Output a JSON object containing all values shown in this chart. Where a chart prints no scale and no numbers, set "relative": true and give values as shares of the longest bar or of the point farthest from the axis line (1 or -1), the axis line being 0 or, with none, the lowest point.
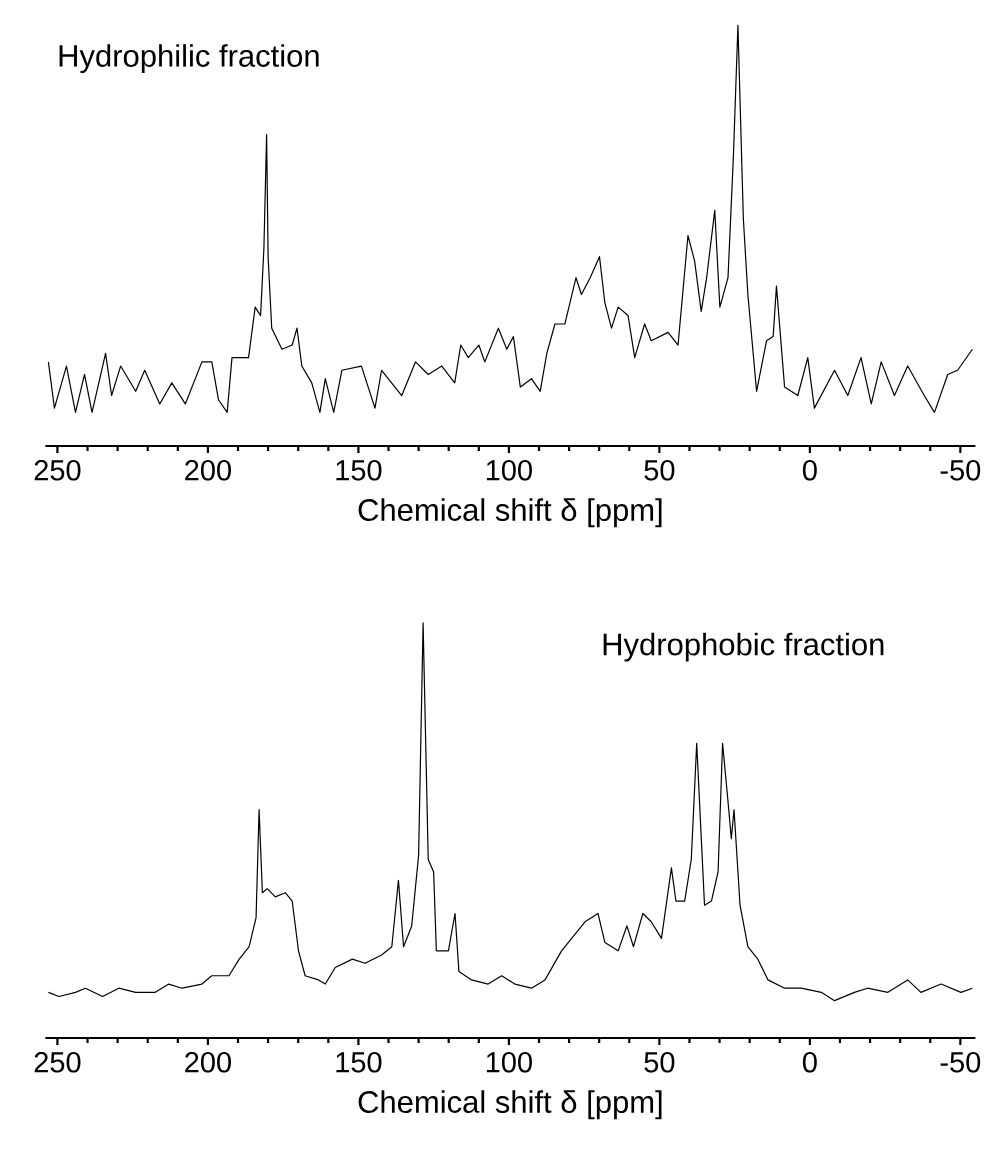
{
  "chart_data": [
    {
      "type": "line",
      "title": "Hydrophilic fraction",
      "xlabel": "Chemical shift δ [ppm]",
      "relative": true,
      "xlim": [
        254,
        -55
      ],
      "xticks": [
        250,
        200,
        150,
        100,
        50,
        0,
        -50
      ],
      "tick_labels": "x",
      "marker": "none",
      "series": [
        {
          "color": "#000000",
          "line_style": "solid",
          "x": [
            253,
            251,
            247,
            244,
            241,
            238.5,
            234,
            232,
            229,
            224,
            221,
            216,
            212,
            207.5,
            202,
            198.7,
            196.5,
            193.6,
            192,
            186.5,
            184.3,
            182.5,
            181.4,
            180.5,
            180,
            178.8,
            175.4,
            172,
            170.4,
            168.8,
            165.5,
            162.8,
            161,
            158.2,
            155.5,
            149,
            144.5,
            142.3,
            135.6,
            131,
            126.8,
            122.3,
            118,
            116,
            113.5,
            110,
            108,
            103.5,
            100.7,
            98.5,
            96.2,
            92.5,
            89.6,
            87.4,
            84.7,
            81.4,
            77.7,
            75.9,
            73,
            69.9,
            68.1,
            65.9,
            63.7,
            60.4,
            58.2,
            54.9,
            52.7,
            47.1,
            43.8,
            40.5,
            38.3,
            36.1,
            34.3,
            31.6,
            29.9,
            27.2,
            25.4,
            23.9,
            22.1,
            20.6,
            17.7,
            14.4,
            12.2,
            11.1,
            8.4,
            4,
            0.7,
            -1.5,
            -8.2,
            -12.6,
            -17,
            -20.4,
            -23.7,
            -28.1,
            -32.5,
            -38,
            -41.4,
            -45.8,
            -49.1,
            -54
          ],
          "values": [
            0.2,
            0.09,
            0.19,
            0.08,
            0.17,
            0.08,
            0.22,
            0.12,
            0.19,
            0.13,
            0.18,
            0.1,
            0.15,
            0.1,
            0.2,
            0.2,
            0.11,
            0.08,
            0.21,
            0.21,
            0.33,
            0.31,
            0.47,
            0.74,
            0.45,
            0.28,
            0.23,
            0.24,
            0.28,
            0.19,
            0.15,
            0.08,
            0.16,
            0.08,
            0.18,
            0.19,
            0.09,
            0.18,
            0.12,
            0.2,
            0.17,
            0.19,
            0.15,
            0.24,
            0.21,
            0.24,
            0.2,
            0.28,
            0.23,
            0.26,
            0.14,
            0.16,
            0.13,
            0.22,
            0.29,
            0.29,
            0.4,
            0.36,
            0.4,
            0.45,
            0.34,
            0.28,
            0.33,
            0.31,
            0.21,
            0.29,
            0.25,
            0.27,
            0.24,
            0.5,
            0.44,
            0.32,
            0.4,
            0.56,
            0.33,
            0.4,
            0.69,
            1.0,
            0.54,
            0.36,
            0.13,
            0.25,
            0.26,
            0.38,
            0.14,
            0.12,
            0.21,
            0.09,
            0.18,
            0.12,
            0.21,
            0.1,
            0.2,
            0.12,
            0.19,
            0.12,
            0.08,
            0.17,
            0.18,
            0.23
          ]
        }
      ]
    },
    {
      "type": "line",
      "title": "Hydrophobic fraction",
      "xlabel": "Chemical shift δ [ppm]",
      "relative": true,
      "xlim": [
        254,
        -55
      ],
      "xticks": [
        250,
        200,
        150,
        100,
        50,
        0,
        -50
      ],
      "tick_labels": "x",
      "marker": "none",
      "series": [
        {
          "color": "#000000",
          "line_style": "solid",
          "x": [
            253,
            249.5,
            244,
            240.7,
            235,
            229.6,
            224,
            217.5,
            213,
            208.6,
            202,
            198.7,
            193,
            189.6,
            186.3,
            184,
            183,
            181.9,
            180.3,
            177.6,
            174.3,
            172,
            169.9,
            167.7,
            163.3,
            161,
            157.7,
            152,
            147.8,
            142.3,
            138.9,
            136.7,
            135,
            132.3,
            130,
            128.5,
            126.8,
            125,
            124.1,
            120.1,
            117.9,
            116.6,
            112.4,
            106.9,
            102.4,
            98,
            92.5,
            88,
            82.5,
            78,
            74.7,
            70.4,
            68.1,
            63.7,
            60.8,
            58.6,
            55.5,
            52.7,
            49.3,
            46,
            44.5,
            41.6,
            39.4,
            37.6,
            35,
            32.7,
            30.5,
            29,
            27.2,
            26.1,
            25.2,
            23.2,
            20.6,
            17.3,
            13.9,
            8.4,
            2.9,
            -3.8,
            -8.2,
            -14.8,
            -19.2,
            -25.9,
            -32.5,
            -36.9,
            -43.6,
            -50.2,
            -54
          ],
          "values": [
            0.11,
            0.1,
            0.11,
            0.12,
            0.1,
            0.12,
            0.11,
            0.11,
            0.13,
            0.12,
            0.13,
            0.15,
            0.15,
            0.19,
            0.22,
            0.29,
            0.55,
            0.35,
            0.36,
            0.34,
            0.35,
            0.33,
            0.21,
            0.15,
            0.14,
            0.13,
            0.17,
            0.19,
            0.18,
            0.2,
            0.22,
            0.38,
            0.22,
            0.27,
            0.44,
            1.0,
            0.43,
            0.4,
            0.21,
            0.21,
            0.3,
            0.16,
            0.14,
            0.13,
            0.15,
            0.13,
            0.12,
            0.14,
            0.21,
            0.25,
            0.28,
            0.3,
            0.23,
            0.21,
            0.27,
            0.22,
            0.3,
            0.28,
            0.24,
            0.41,
            0.33,
            0.33,
            0.43,
            0.71,
            0.32,
            0.33,
            0.4,
            0.71,
            0.57,
            0.48,
            0.55,
            0.32,
            0.22,
            0.19,
            0.14,
            0.12,
            0.12,
            0.11,
            0.09,
            0.11,
            0.12,
            0.11,
            0.14,
            0.11,
            0.13,
            0.11,
            0.12
          ]
        }
      ]
    }
  ]
}
